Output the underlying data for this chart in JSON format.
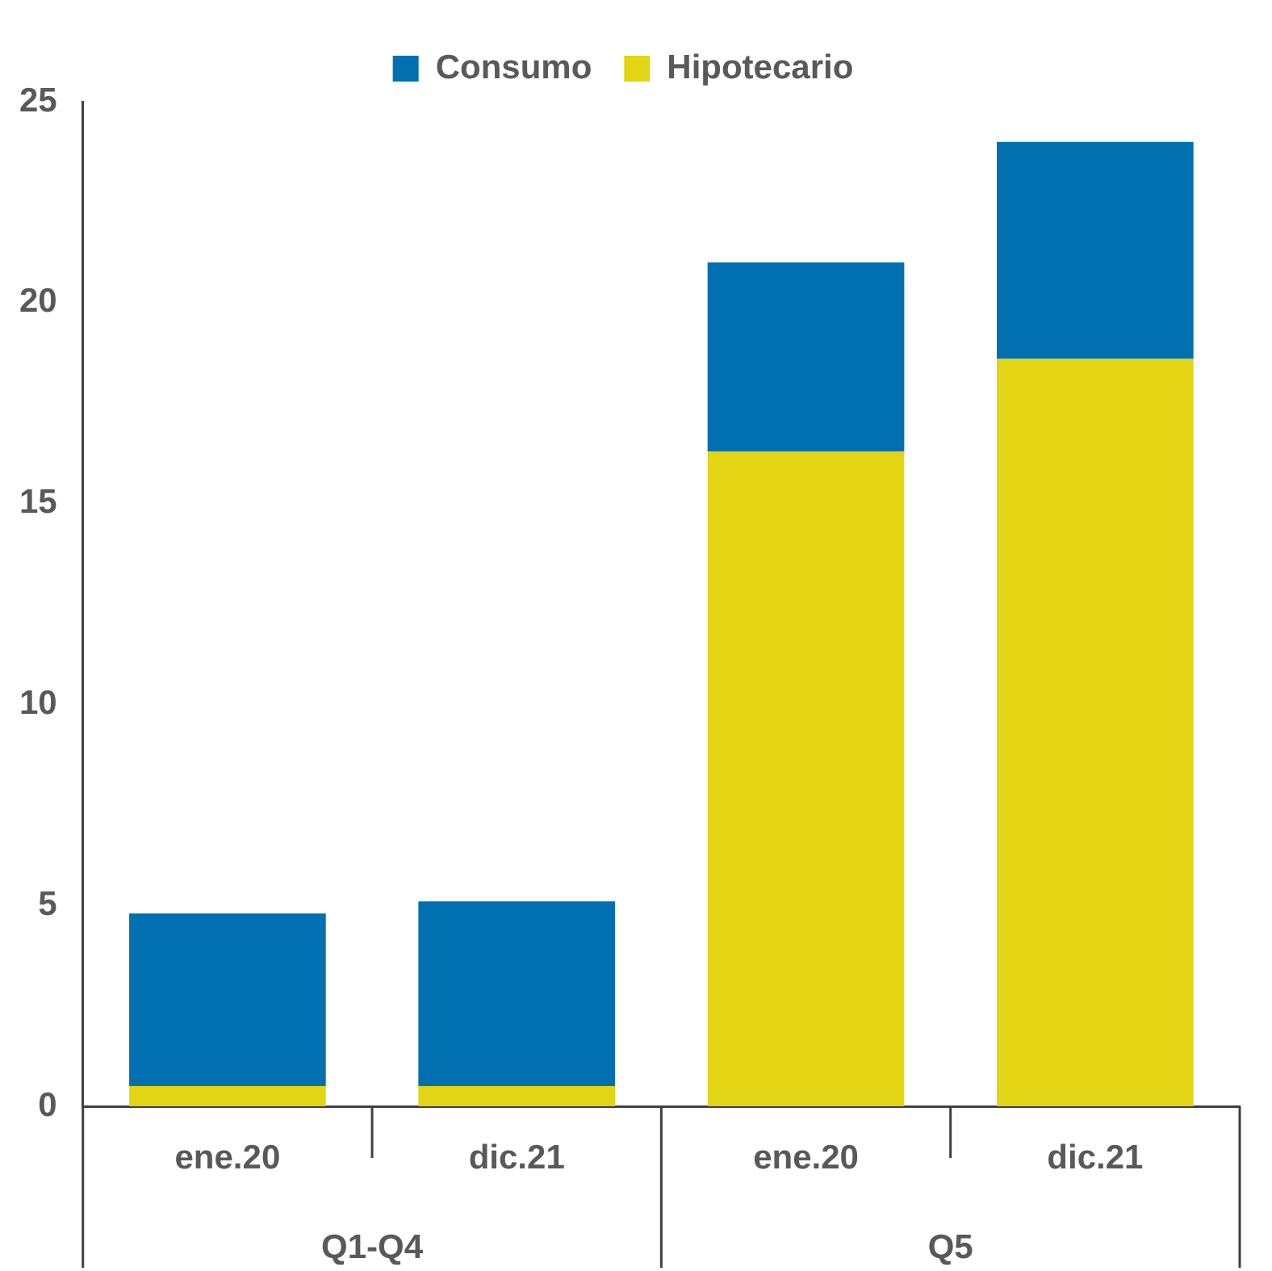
{
  "chart_data": {
    "type": "bar",
    "stacked": true,
    "categories": [
      "ene.20",
      "dic.21",
      "ene.20",
      "dic.21"
    ],
    "series": [
      {
        "name": "Hipotecario",
        "color": "#e3d513",
        "values": [
          0.5,
          0.5,
          16.3,
          18.6
        ]
      },
      {
        "name": "Consumo",
        "color": "#0070b0",
        "values": [
          4.3,
          4.6,
          4.7,
          5.4
        ]
      }
    ],
    "annotations": [
      "Q1-Q4",
      "Q5"
    ],
    "ylim": [
      0,
      25
    ],
    "yticks": [
      0,
      5,
      10,
      15,
      20,
      25
    ],
    "grid": false,
    "legend": "top"
  }
}
